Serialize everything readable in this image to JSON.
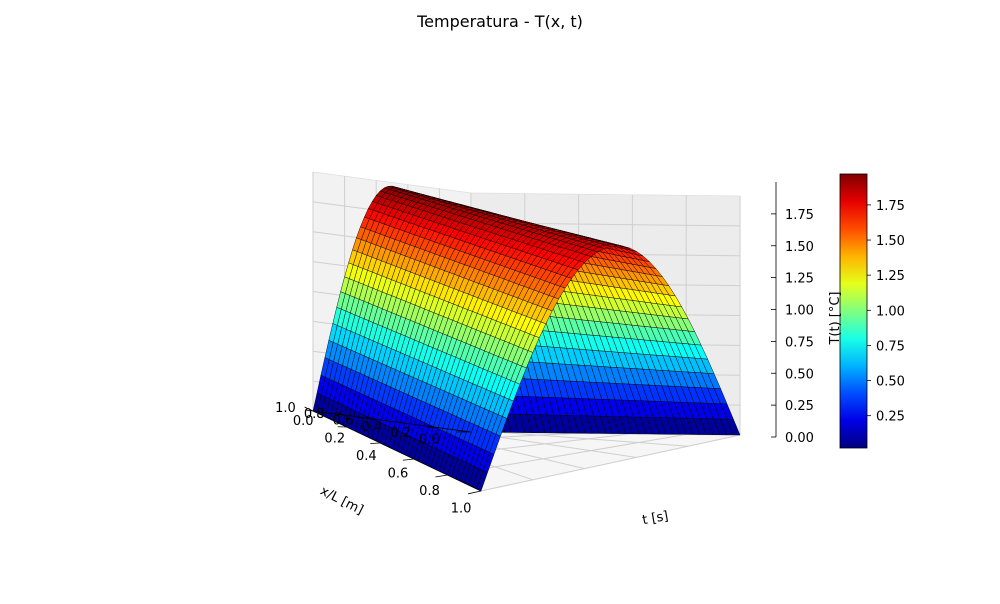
{
  "chart_data": {
    "type": "surface3d",
    "title": "Temperatura - T(x, t)",
    "xlabel": "x/L [m]",
    "ylabel": "t [s]",
    "zlabel": "T(t) [°C]",
    "colorbar_label": "T(t) [°C]",
    "colormap": "jet",
    "edge_color": "#000000",
    "x_range": [
      0.0,
      1.0
    ],
    "t_range": [
      0.0,
      1.0
    ],
    "z_range": [
      0.0,
      2.0
    ],
    "x_ticks": [
      "0.0",
      "0.2",
      "0.4",
      "0.6",
      "0.8",
      "1.0"
    ],
    "t_ticks": [
      "0.0",
      "0.2",
      "0.4",
      "0.6",
      "0.8",
      "1.0"
    ],
    "z_ticks": [
      "0.00",
      "0.25",
      "0.50",
      "0.75",
      "1.00",
      "1.25",
      "1.50",
      "1.75"
    ],
    "colorbar_ticks": [
      "0.25",
      "0.50",
      "0.75",
      "1.00",
      "1.25",
      "1.50",
      "1.75"
    ],
    "colorbar_range": [
      0.02,
      1.97
    ],
    "peak_value": 1.97,
    "peak_position_x": 0.5,
    "surface_formula": "T(x,t) = 1.97 * sin(pi * x) * (1 - 0.08 * t)",
    "t_decay_fraction": 0.08,
    "grid": true
  }
}
